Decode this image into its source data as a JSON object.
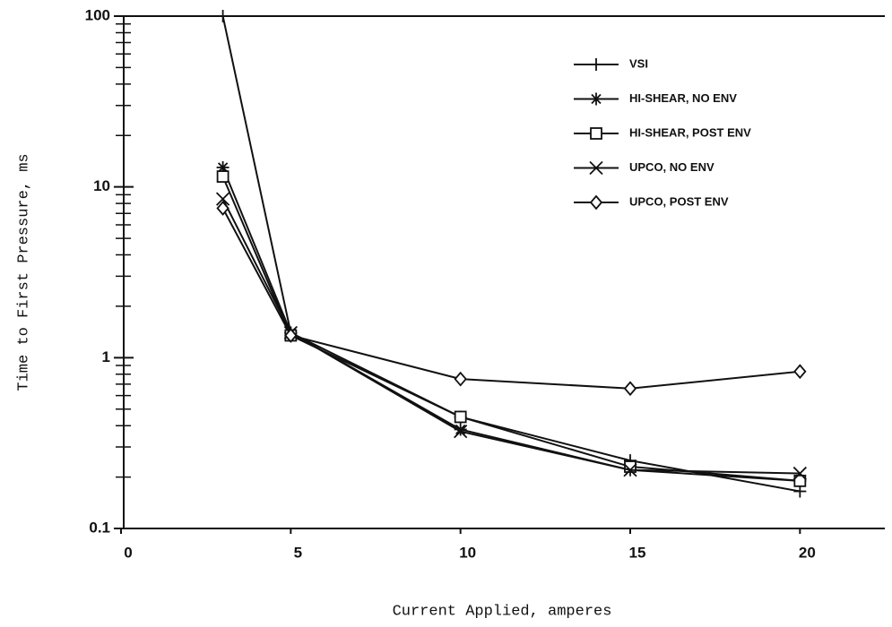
{
  "chart_data": {
    "type": "line",
    "x_label": "Current Applied, amperes",
    "y_label": "Time to First Pressure, ms",
    "xlim": [
      0,
      22.5
    ],
    "xticks": [
      0,
      5,
      10,
      15,
      20
    ],
    "ylim": [
      0.1,
      100
    ],
    "yticks": [
      0.1,
      1,
      10,
      100
    ],
    "minor_yticks": [
      0.2,
      0.3,
      0.4,
      0.5,
      0.6,
      0.7,
      0.8,
      0.9,
      2,
      3,
      4,
      5,
      6,
      7,
      8,
      9,
      20,
      30,
      40,
      50,
      60,
      70,
      80,
      90
    ],
    "log_y": true,
    "grid": false,
    "legend": "upper right",
    "x": [
      3,
      5,
      10,
      15,
      20
    ],
    "series": [
      {
        "name": "VSI",
        "color": "#111111",
        "marker": "plus",
        "values": [
          100,
          1.4,
          0.45,
          0.25,
          0.165
        ]
      },
      {
        "name": "HI-SHEAR, NO ENV",
        "color": "#111111",
        "marker": "asterisk",
        "values": [
          13,
          1.4,
          0.38,
          0.22,
          0.19
        ]
      },
      {
        "name": "HI-SHEAR, POST ENV",
        "color": "#111111",
        "marker": "square",
        "values": [
          11.5,
          1.35,
          0.45,
          0.23,
          0.19
        ]
      },
      {
        "name": "UPCO, NO ENV",
        "color": "#111111",
        "marker": "cross",
        "values": [
          8.5,
          1.4,
          0.37,
          0.22,
          0.21
        ]
      },
      {
        "name": "UPCO, POST ENV",
        "color": "#111111",
        "marker": "diamond",
        "values": [
          7.5,
          1.35,
          0.75,
          0.66,
          0.83
        ]
      }
    ]
  }
}
